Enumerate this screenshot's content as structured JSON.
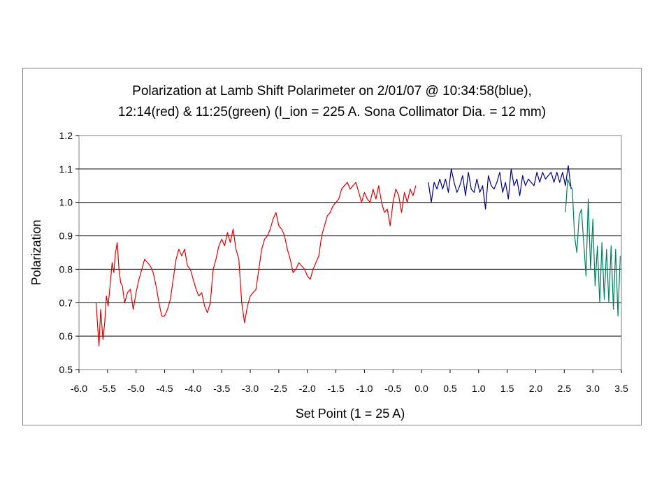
{
  "chart_data": {
    "type": "line",
    "title_lines": [
      "Polarization at Lamb Shift Polarimeter on 2/01/07 @ 10:34:58(blue),",
      "12:14(red) & 11:25(green) (I_ion = 225 A. Sona Collimator Dia. = 12 mm)"
    ],
    "xlabel": "Set Point (1 = 25 A)",
    "ylabel": "Polarization",
    "xlim": [
      -6.0,
      3.5
    ],
    "ylim": [
      0.5,
      1.2
    ],
    "x_ticks": [
      -6.0,
      -5.5,
      -5.0,
      -4.5,
      -4.0,
      -3.5,
      -3.0,
      -2.5,
      -2.0,
      -1.5,
      -1.0,
      -0.5,
      0.0,
      0.5,
      1.0,
      1.5,
      2.0,
      2.5,
      3.0,
      3.5
    ],
    "x_tick_labels": [
      "-6.0",
      "-5.5",
      "-5.0",
      "-4.5",
      "-4.0",
      "-3.5",
      "-3.0",
      "-2.5",
      "-2.0",
      "-1.5",
      "-1.0",
      "-0.5",
      "0.0",
      "0.5",
      "1.0",
      "1.5",
      "2.0",
      "2.5",
      "3.0",
      "3.5"
    ],
    "y_ticks": [
      0.5,
      0.6,
      0.7,
      0.8,
      0.9,
      1.0,
      1.1,
      1.2
    ],
    "y_tick_labels": [
      "0.5",
      "0.6",
      "0.7",
      "0.8",
      "0.9",
      "1.0",
      "1.1",
      "1.2"
    ],
    "grid": "horizontal",
    "legend": "none",
    "series": [
      {
        "color": "#e00000",
        "x": [
          -5.7,
          -5.65,
          -5.62,
          -5.58,
          -5.55,
          -5.52,
          -5.49,
          -5.45,
          -5.42,
          -5.39,
          -5.36,
          -5.33,
          -5.3,
          -5.27,
          -5.24,
          -5.2,
          -5.15,
          -5.1,
          -5.05,
          -5.0,
          -4.95,
          -4.9,
          -4.85,
          -4.8,
          -4.75,
          -4.7,
          -4.65,
          -4.6,
          -4.55,
          -4.5,
          -4.45,
          -4.4,
          -4.35,
          -4.3,
          -4.25,
          -4.2,
          -4.15,
          -4.1,
          -4.05,
          -4.0,
          -3.95,
          -3.9,
          -3.85,
          -3.8,
          -3.75,
          -3.7,
          -3.65,
          -3.6,
          -3.55,
          -3.5,
          -3.45,
          -3.4,
          -3.35,
          -3.3,
          -3.25,
          -3.2,
          -3.15,
          -3.1,
          -3.05,
          -3.0,
          -2.95,
          -2.9,
          -2.85,
          -2.8,
          -2.75,
          -2.7,
          -2.65,
          -2.6,
          -2.55,
          -2.5,
          -2.45,
          -2.4,
          -2.35,
          -2.3,
          -2.25,
          -2.2,
          -2.15,
          -2.1,
          -2.05,
          -2.0,
          -1.95,
          -1.9,
          -1.85,
          -1.8,
          -1.75,
          -1.7,
          -1.65,
          -1.6,
          -1.55,
          -1.5,
          -1.45,
          -1.4,
          -1.35,
          -1.3,
          -1.25,
          -1.2,
          -1.15,
          -1.1,
          -1.05,
          -1.0,
          -0.95,
          -0.9,
          -0.85,
          -0.8,
          -0.75,
          -0.7,
          -0.65,
          -0.6,
          -0.55,
          -0.5,
          -0.45,
          -0.4,
          -0.35,
          -0.3,
          -0.25,
          -0.2,
          -0.15,
          -0.1
        ],
        "y": [
          0.7,
          0.57,
          0.68,
          0.59,
          0.64,
          0.72,
          0.69,
          0.76,
          0.82,
          0.79,
          0.85,
          0.88,
          0.8,
          0.76,
          0.75,
          0.7,
          0.73,
          0.74,
          0.68,
          0.73,
          0.77,
          0.8,
          0.83,
          0.82,
          0.81,
          0.79,
          0.75,
          0.7,
          0.66,
          0.66,
          0.68,
          0.71,
          0.77,
          0.83,
          0.86,
          0.84,
          0.86,
          0.81,
          0.8,
          0.77,
          0.74,
          0.72,
          0.73,
          0.69,
          0.67,
          0.7,
          0.8,
          0.83,
          0.87,
          0.89,
          0.87,
          0.91,
          0.88,
          0.92,
          0.86,
          0.83,
          0.7,
          0.64,
          0.69,
          0.72,
          0.73,
          0.74,
          0.8,
          0.86,
          0.89,
          0.9,
          0.92,
          0.95,
          0.97,
          0.93,
          0.92,
          0.9,
          0.86,
          0.83,
          0.79,
          0.8,
          0.82,
          0.81,
          0.8,
          0.78,
          0.77,
          0.8,
          0.82,
          0.84,
          0.9,
          0.93,
          0.96,
          0.97,
          0.99,
          1.0,
          1.01,
          1.04,
          1.05,
          1.06,
          1.04,
          1.05,
          1.06,
          1.03,
          1.0,
          1.03,
          1.01,
          1.0,
          1.04,
          1.01,
          1.05,
          1.0,
          0.97,
          0.98,
          0.93,
          1.0,
          1.04,
          1.02,
          0.97,
          1.03,
          1.0,
          1.04,
          1.02,
          1.05
        ]
      },
      {
        "color": "#000080",
        "x": [
          0.12,
          0.17,
          0.22,
          0.27,
          0.32,
          0.37,
          0.42,
          0.47,
          0.52,
          0.57,
          0.62,
          0.67,
          0.72,
          0.77,
          0.82,
          0.87,
          0.92,
          0.97,
          1.02,
          1.07,
          1.12,
          1.17,
          1.22,
          1.27,
          1.32,
          1.37,
          1.42,
          1.47,
          1.52,
          1.57,
          1.62,
          1.67,
          1.72,
          1.77,
          1.82,
          1.87,
          1.92,
          1.97,
          2.02,
          2.07,
          2.12,
          2.17,
          2.22,
          2.27,
          2.32,
          2.37,
          2.42,
          2.47,
          2.52,
          2.57,
          2.62
        ],
        "y": [
          1.06,
          1.0,
          1.06,
          1.04,
          1.07,
          1.04,
          1.07,
          1.03,
          1.1,
          1.06,
          1.03,
          1.05,
          1.08,
          1.02,
          1.09,
          1.04,
          1.03,
          1.07,
          1.03,
          1.05,
          0.98,
          1.08,
          1.05,
          1.04,
          1.06,
          1.09,
          1.03,
          1.06,
          1.01,
          1.1,
          1.05,
          1.07,
          1.02,
          1.08,
          1.05,
          1.07,
          1.06,
          1.05,
          1.09,
          1.06,
          1.09,
          1.07,
          1.08,
          1.09,
          1.06,
          1.09,
          1.06,
          1.09,
          1.05,
          1.11,
          1.04
        ]
      },
      {
        "color": "#008060",
        "x": [
          2.52,
          2.56,
          2.6,
          2.64,
          2.68,
          2.72,
          2.76,
          2.8,
          2.84,
          2.88,
          2.92,
          2.96,
          3.0,
          3.04,
          3.08,
          3.12,
          3.16,
          3.2,
          3.24,
          3.28,
          3.32,
          3.36,
          3.4,
          3.44,
          3.48
        ],
        "y": [
          0.97,
          1.07,
          1.05,
          1.04,
          0.9,
          0.85,
          0.96,
          0.98,
          0.88,
          0.78,
          1.01,
          0.8,
          0.95,
          0.75,
          0.87,
          0.7,
          0.88,
          0.71,
          0.86,
          0.7,
          0.87,
          0.68,
          0.86,
          0.66,
          0.84
        ]
      }
    ]
  }
}
